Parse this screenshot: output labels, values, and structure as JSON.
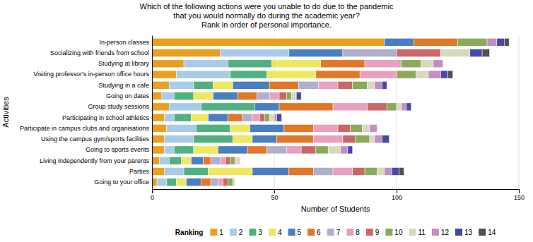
{
  "chart_data": {
    "type": "bar",
    "orientation": "horizontal",
    "stacked": true,
    "title": "Which of the following actions were you unable to do due to the pandemic\nthat you would normally do during the academic year?\nRank in order of personal importance.",
    "xlabel": "Number of Students",
    "ylabel": "Activities",
    "categories": [
      "Going to your office",
      "Parties",
      "Living independently from your parents",
      "Going to sports events",
      "Using the campus gym/sports facilities",
      "Participate in campus clubs and organisations",
      "Participating in school athletics",
      "Group study sessions",
      "Going on dates",
      "Studying in a cafe",
      "Visiting professor's in-person office hours",
      "Studying at library",
      "Socializing with friends from school",
      "In-person classes"
    ],
    "series": [
      {
        "name": "1",
        "color": "#E8A020",
        "values": [
          2,
          5,
          3,
          5,
          5,
          6,
          5,
          7,
          4,
          7,
          10,
          13,
          28,
          95
        ]
      },
      {
        "name": "2",
        "color": "#A8CBE8",
        "values": [
          4,
          8,
          4,
          4,
          12,
          12,
          4,
          13,
          5,
          10,
          22,
          18,
          28,
          0
        ]
      },
      {
        "name": "3",
        "color": "#52B080",
        "values": [
          4,
          10,
          5,
          8,
          16,
          14,
          7,
          22,
          8,
          8,
          15,
          18,
          0,
          0
        ]
      },
      {
        "name": "4",
        "color": "#EDE860",
        "values": [
          4,
          18,
          4,
          10,
          8,
          8,
          7,
          0,
          8,
          8,
          20,
          20,
          0,
          0
        ]
      },
      {
        "name": "5",
        "color": "#4A7EC0",
        "values": [
          6,
          15,
          5,
          12,
          10,
          14,
          8,
          10,
          10,
          15,
          0,
          0,
          22,
          12
        ]
      },
      {
        "name": "6",
        "color": "#E07828",
        "values": [
          4,
          10,
          3,
          8,
          15,
          12,
          6,
          22,
          8,
          12,
          18,
          18,
          0,
          18
        ]
      },
      {
        "name": "7",
        "color": "#B0B0CC",
        "values": [
          3,
          8,
          4,
          8,
          0,
          0,
          4,
          0,
          5,
          8,
          0,
          0,
          22,
          0
        ]
      },
      {
        "name": "8",
        "color": "#E8A0C0",
        "values": [
          2,
          8,
          2,
          6,
          12,
          10,
          3,
          14,
          4,
          8,
          15,
          15,
          0,
          0
        ]
      },
      {
        "name": "9",
        "color": "#C86868",
        "values": [
          2,
          5,
          2,
          6,
          5,
          5,
          2,
          8,
          3,
          6,
          0,
          0,
          18,
          0
        ]
      },
      {
        "name": "10",
        "color": "#8AAA58",
        "values": [
          2,
          5,
          2,
          5,
          6,
          5,
          2,
          4,
          2,
          6,
          8,
          8,
          0,
          12
        ]
      },
      {
        "name": "11",
        "color": "#D8D8C0",
        "values": [
          1,
          3,
          2,
          5,
          2,
          3,
          2,
          2,
          2,
          3,
          5,
          5,
          12,
          0
        ]
      },
      {
        "name": "12",
        "color": "#C090C0",
        "values": [
          0,
          3,
          0,
          3,
          3,
          3,
          1,
          2,
          0,
          3,
          5,
          4,
          0,
          4
        ]
      },
      {
        "name": "13",
        "color": "#4848A8",
        "values": [
          0,
          3,
          0,
          2,
          3,
          0,
          2,
          2,
          2,
          2,
          3,
          0,
          5,
          3
        ]
      },
      {
        "name": "14",
        "color": "#505050",
        "values": [
          0,
          2,
          0,
          0,
          0,
          0,
          0,
          0,
          0,
          0,
          2,
          0,
          3,
          2
        ]
      }
    ],
    "xlim": [
      0,
      150
    ],
    "xticks": [
      0,
      50,
      100,
      150
    ],
    "grid": true,
    "legend": "bottom",
    "legend_title": "Ranking"
  }
}
